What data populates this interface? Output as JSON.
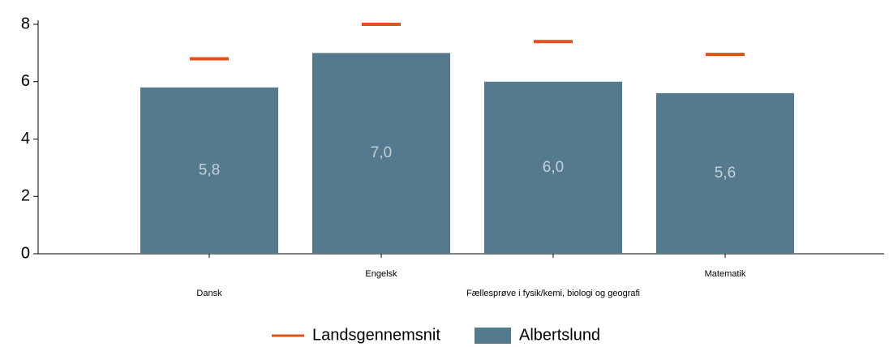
{
  "chart_data": {
    "type": "bar",
    "categories": [
      "Dansk",
      "Engelsk",
      "Fællesprøve i fysik/kemi, biologi og geografi",
      "Matematik"
    ],
    "series": [
      {
        "name": "Landsgennemsnit",
        "type": "marker",
        "color": "#e0521c",
        "values": [
          6.8,
          8.0,
          7.4,
          6.95
        ]
      },
      {
        "name": "Albertslund",
        "type": "bar",
        "color": "#557a8d",
        "values": [
          5.8,
          7.0,
          6.0,
          5.6
        ],
        "value_labels": [
          "5,8",
          "7,0",
          "6,0",
          "5,6"
        ]
      }
    ],
    "ylim": [
      0,
      8
    ],
    "yticks": [
      0,
      2,
      4,
      6,
      8
    ],
    "grid": false,
    "legend": "bottom"
  }
}
